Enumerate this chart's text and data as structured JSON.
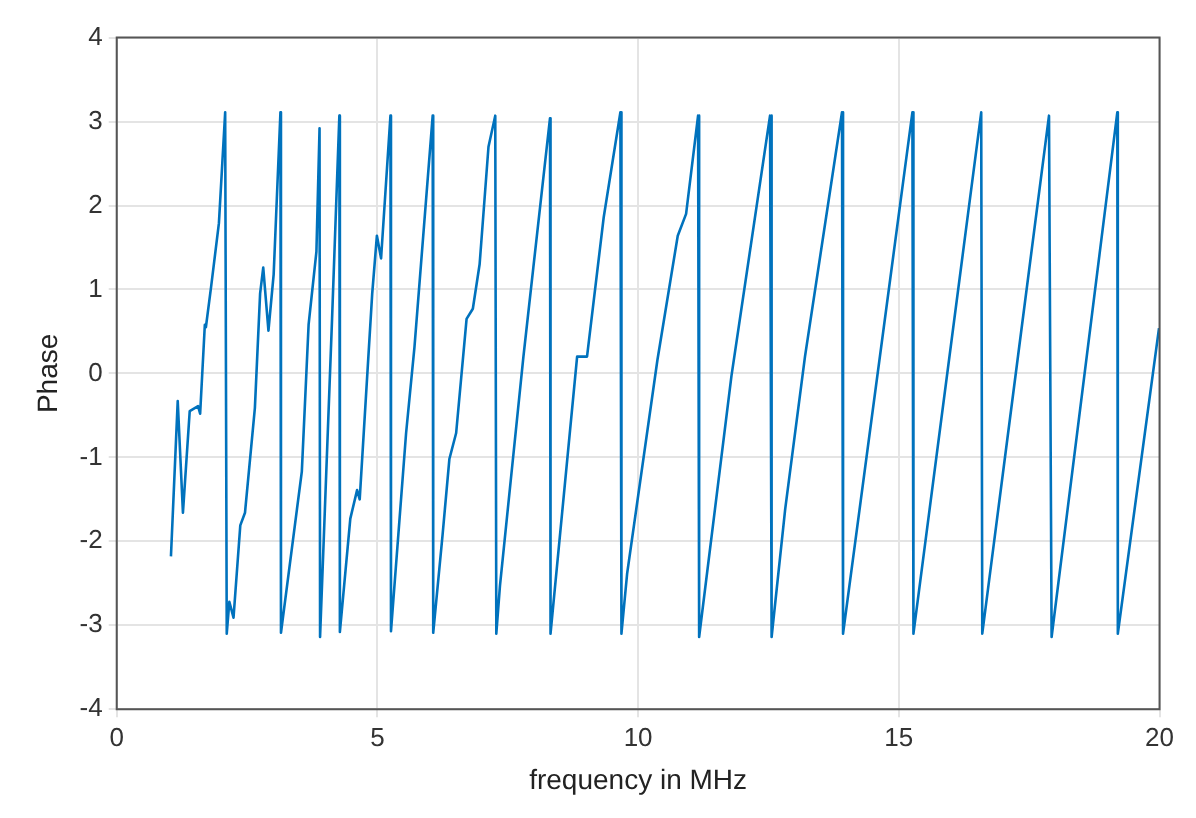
{
  "chart_data": {
    "type": "line",
    "xlabel": "frequency in MHz",
    "ylabel": "Phase",
    "xlim": [
      0,
      20
    ],
    "ylim": [
      -4,
      4
    ],
    "xticks": [
      0,
      5,
      10,
      15,
      20
    ],
    "yticks": [
      -4,
      -3,
      -2,
      -1,
      0,
      1,
      2,
      3,
      4
    ],
    "grid": true,
    "marker": "none",
    "line_style": "solid",
    "series": [
      {
        "color": "#0072bd",
        "x": [
          1.04,
          1.17,
          1.27,
          1.4,
          1.56,
          1.6,
          1.69,
          1.71,
          1.81,
          1.96,
          2.08,
          2.11,
          2.16,
          2.24,
          2.37,
          2.46,
          2.65,
          2.75,
          2.81,
          2.91,
          3.01,
          3.14,
          3.15,
          3.55,
          3.68,
          3.83,
          3.89,
          3.9,
          4.13,
          4.27,
          4.28,
          4.48,
          4.61,
          4.66,
          4.9,
          4.99,
          5.07,
          5.25,
          5.26,
          5.55,
          5.71,
          6.06,
          6.07,
          6.25,
          6.38,
          6.51,
          6.71,
          6.83,
          6.96,
          7.13,
          7.26,
          7.28,
          7.35,
          7.8,
          7.99,
          8.31,
          8.32,
          8.83,
          9.02,
          9.34,
          9.66,
          9.68,
          9.79,
          10.37,
          10.76,
          10.92,
          11.15,
          11.17,
          11.79,
          12.53,
          12.56,
          12.82,
          13.2,
          13.91,
          13.93,
          15.26,
          15.28,
          16.58,
          16.6,
          17.88,
          17.93,
          19.19,
          19.2,
          19.99
        ],
        "values": [
          -2.18,
          -0.33,
          -1.66,
          -0.45,
          -0.39,
          -0.48,
          0.58,
          0.55,
          1.03,
          1.79,
          3.11,
          -3.1,
          -2.72,
          -2.91,
          -1.81,
          -1.66,
          -0.41,
          0.95,
          1.26,
          0.51,
          1.18,
          3.11,
          -3.09,
          -1.17,
          0.58,
          1.45,
          2.92,
          -3.14,
          0.65,
          3.07,
          -3.08,
          -1.73,
          -1.39,
          -1.5,
          0.95,
          1.64,
          1.37,
          3.07,
          -3.07,
          -0.71,
          0.31,
          3.07,
          -3.09,
          -1.92,
          -1.02,
          -0.71,
          0.65,
          0.77,
          1.3,
          2.7,
          3.07,
          -3.1,
          -2.53,
          0.2,
          1.26,
          3.04,
          -3.1,
          0.2,
          0.2,
          1.86,
          3.11,
          -3.1,
          -2.38,
          0.16,
          1.64,
          1.9,
          3.07,
          -3.14,
          -0.03,
          3.07,
          -3.14,
          -1.62,
          0.2,
          3.11,
          -3.1,
          3.11,
          -3.1,
          3.11,
          -3.1,
          3.07,
          -3.14,
          3.11,
          -3.1,
          0.54
        ]
      }
    ]
  }
}
